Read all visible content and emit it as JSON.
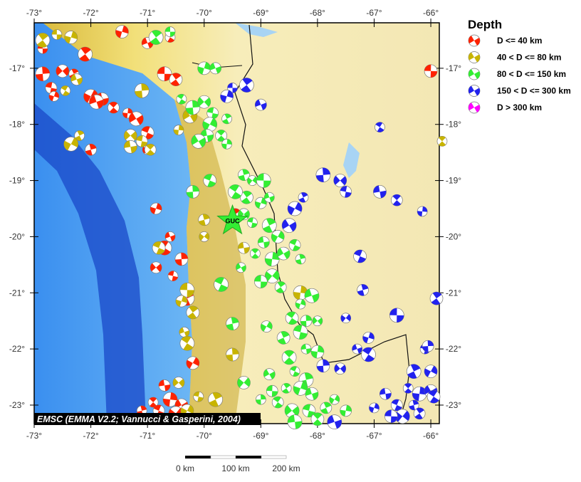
{
  "map": {
    "lon_range": [
      -73.0,
      -65.85
    ],
    "lat_range": [
      -23.33,
      -16.19
    ],
    "lon_ticks": [
      -73,
      -72,
      -71,
      -70,
      -69,
      -68,
      -67,
      -66
    ],
    "lat_ticks": [
      -17,
      -18,
      -19,
      -20,
      -21,
      -22,
      -23
    ],
    "lon_tick_labels": [
      "-73°",
      "-72°",
      "-71°",
      "-70°",
      "-69°",
      "-68°",
      "-67°",
      "-66°"
    ],
    "lat_tick_labels": [
      "-17°",
      "-18°",
      "-19°",
      "-20°",
      "-21°",
      "-22°",
      "-23°"
    ],
    "credit": "EMSC (EMMA V2.2; Vannucci & Gasperini, 2004)",
    "station": {
      "name": "GUC",
      "lon": -69.5,
      "lat": -19.72,
      "color": "#33ee33"
    },
    "scale_bar": {
      "labels": [
        "0 km",
        "100 km",
        "200 km"
      ]
    }
  },
  "legend": {
    "title": "Depth",
    "items": [
      {
        "label": "D <= 40 km",
        "color": "#ff2200"
      },
      {
        "label": "40 < D <= 80 km",
        "color": "#c8b400"
      },
      {
        "label": "80 < D <= 150 km",
        "color": "#33ee33"
      },
      {
        "label": "150 < D <= 300 km",
        "color": "#2222ee"
      },
      {
        "label": "D > 300 km",
        "color": "#ff00ff"
      }
    ]
  },
  "events": {
    "red": [
      [
        -72.85,
        -16.65
      ],
      [
        -72.1,
        -16.75
      ],
      [
        -71.45,
        -16.35
      ],
      [
        -71.0,
        -16.55
      ],
      [
        -70.6,
        -16.45
      ],
      [
        -72.85,
        -17.1
      ],
      [
        -72.5,
        -17.05
      ],
      [
        -72.7,
        -17.35
      ],
      [
        -72.3,
        -17.1
      ],
      [
        -72.0,
        -17.5
      ],
      [
        -71.8,
        -17.55
      ],
      [
        -71.6,
        -17.7
      ],
      [
        -71.35,
        -17.8
      ],
      [
        -71.2,
        -17.9
      ],
      [
        -71.0,
        -18.15
      ],
      [
        -72.0,
        -18.45
      ],
      [
        -71.0,
        -18.45
      ],
      [
        -70.7,
        -17.1
      ],
      [
        -70.5,
        -17.2
      ],
      [
        -70.85,
        -19.5
      ],
      [
        -70.6,
        -20.0
      ],
      [
        -70.7,
        -20.2
      ],
      [
        -70.4,
        -20.4
      ],
      [
        -70.85,
        -20.55
      ],
      [
        -70.55,
        -20.7
      ],
      [
        -70.3,
        -21.1
      ],
      [
        -70.2,
        -22.25
      ],
      [
        -70.7,
        -22.65
      ],
      [
        -70.9,
        -22.95
      ],
      [
        -70.6,
        -22.9
      ],
      [
        -70.4,
        -23.0
      ],
      [
        -70.8,
        -23.1
      ],
      [
        -71.1,
        -23.1
      ],
      [
        -70.5,
        -23.15
      ],
      [
        -66.0,
        -17.05
      ],
      [
        -69.45,
        -19.6
      ],
      [
        -72.65,
        -17.5
      ],
      [
        -71.9,
        -17.6
      ]
    ],
    "yellow": [
      [
        -72.6,
        -16.4
      ],
      [
        -72.85,
        -16.5
      ],
      [
        -72.35,
        -16.45
      ],
      [
        -72.25,
        -17.2
      ],
      [
        -72.45,
        -17.4
      ],
      [
        -71.1,
        -17.4
      ],
      [
        -71.3,
        -18.2
      ],
      [
        -71.1,
        -18.3
      ],
      [
        -72.2,
        -18.2
      ],
      [
        -72.35,
        -18.35
      ],
      [
        -71.3,
        -18.4
      ],
      [
        -70.95,
        -18.45
      ],
      [
        -70.45,
        -18.1
      ],
      [
        -70.25,
        -17.85
      ],
      [
        -70.8,
        -20.2
      ],
      [
        -70.0,
        -19.7
      ],
      [
        -70.0,
        -20.0
      ],
      [
        -70.3,
        -20.95
      ],
      [
        -70.2,
        -21.35
      ],
      [
        -70.4,
        -21.15
      ],
      [
        -70.35,
        -21.7
      ],
      [
        -70.3,
        -21.9
      ],
      [
        -69.5,
        -22.1
      ],
      [
        -70.45,
        -22.6
      ],
      [
        -70.1,
        -22.85
      ],
      [
        -69.8,
        -22.9
      ],
      [
        -70.3,
        -23.1
      ],
      [
        -69.3,
        -20.2
      ],
      [
        -65.8,
        -18.3
      ],
      [
        -68.3,
        -21.0
      ]
    ],
    "green": [
      [
        -70.6,
        -16.35
      ],
      [
        -70.85,
        -16.45
      ],
      [
        -70.0,
        -17.0
      ],
      [
        -69.8,
        -17.0
      ],
      [
        -70.4,
        -17.55
      ],
      [
        -70.2,
        -17.7
      ],
      [
        -70.0,
        -17.6
      ],
      [
        -69.85,
        -17.8
      ],
      [
        -69.6,
        -17.9
      ],
      [
        -69.9,
        -18.0
      ],
      [
        -69.95,
        -18.2
      ],
      [
        -69.7,
        -18.2
      ],
      [
        -69.6,
        -18.35
      ],
      [
        -70.1,
        -18.3
      ],
      [
        -69.9,
        -19.0
      ],
      [
        -69.3,
        -18.9
      ],
      [
        -69.15,
        -19.0
      ],
      [
        -68.95,
        -19.0
      ],
      [
        -69.25,
        -19.3
      ],
      [
        -69.0,
        -19.4
      ],
      [
        -68.85,
        -19.3
      ],
      [
        -69.45,
        -19.2
      ],
      [
        -70.2,
        -19.2
      ],
      [
        -69.3,
        -19.6
      ],
      [
        -69.15,
        -19.75
      ],
      [
        -68.85,
        -19.8
      ],
      [
        -68.7,
        -20.0
      ],
      [
        -68.95,
        -20.1
      ],
      [
        -69.1,
        -20.3
      ],
      [
        -68.8,
        -20.4
      ],
      [
        -68.6,
        -20.3
      ],
      [
        -68.4,
        -20.15
      ],
      [
        -68.3,
        -20.4
      ],
      [
        -68.8,
        -20.7
      ],
      [
        -69.0,
        -20.8
      ],
      [
        -68.65,
        -20.9
      ],
      [
        -68.3,
        -21.2
      ],
      [
        -68.1,
        -21.05
      ],
      [
        -68.45,
        -21.45
      ],
      [
        -68.2,
        -21.5
      ],
      [
        -68.0,
        -21.5
      ],
      [
        -68.3,
        -21.7
      ],
      [
        -68.6,
        -21.8
      ],
      [
        -68.9,
        -21.6
      ],
      [
        -68.2,
        -22.0
      ],
      [
        -68.5,
        -22.15
      ],
      [
        -68.0,
        -22.05
      ],
      [
        -68.85,
        -22.45
      ],
      [
        -68.4,
        -22.4
      ],
      [
        -68.2,
        -22.55
      ],
      [
        -69.3,
        -22.6
      ],
      [
        -68.8,
        -22.75
      ],
      [
        -68.55,
        -22.7
      ],
      [
        -68.3,
        -22.7
      ],
      [
        -68.1,
        -22.8
      ],
      [
        -68.7,
        -22.95
      ],
      [
        -69.0,
        -22.9
      ],
      [
        -68.45,
        -23.1
      ],
      [
        -68.15,
        -23.1
      ],
      [
        -67.85,
        -23.05
      ],
      [
        -67.7,
        -22.9
      ],
      [
        -68.4,
        -23.3
      ],
      [
        -68.0,
        -23.25
      ],
      [
        -67.5,
        -23.1
      ],
      [
        -69.35,
        -20.55
      ],
      [
        -69.7,
        -20.85
      ],
      [
        -69.5,
        -21.55
      ]
    ],
    "blue": [
      [
        -69.5,
        -17.35
      ],
      [
        -69.25,
        -17.3
      ],
      [
        -69.6,
        -17.5
      ],
      [
        -69.0,
        -17.65
      ],
      [
        -66.9,
        -18.05
      ],
      [
        -67.9,
        -18.9
      ],
      [
        -67.6,
        -19.0
      ],
      [
        -67.5,
        -19.2
      ],
      [
        -68.25,
        -19.3
      ],
      [
        -68.4,
        -19.5
      ],
      [
        -66.9,
        -19.2
      ],
      [
        -66.6,
        -19.35
      ],
      [
        -66.15,
        -19.55
      ],
      [
        -68.5,
        -19.8
      ],
      [
        -67.25,
        -20.35
      ],
      [
        -67.2,
        -20.95
      ],
      [
        -67.5,
        -21.45
      ],
      [
        -66.6,
        -21.4
      ],
      [
        -65.9,
        -21.1
      ],
      [
        -67.1,
        -21.8
      ],
      [
        -67.3,
        -22.0
      ],
      [
        -67.1,
        -22.1
      ],
      [
        -67.9,
        -22.3
      ],
      [
        -67.6,
        -22.35
      ],
      [
        -66.1,
        -22.0
      ],
      [
        -66.3,
        -22.4
      ],
      [
        -66.0,
        -22.4
      ],
      [
        -66.8,
        -22.8
      ],
      [
        -66.4,
        -22.7
      ],
      [
        -66.2,
        -22.8
      ],
      [
        -66.0,
        -22.75
      ],
      [
        -66.6,
        -23.0
      ],
      [
        -66.3,
        -23.0
      ],
      [
        -66.5,
        -23.2
      ],
      [
        -66.7,
        -23.2
      ],
      [
        -66.2,
        -23.15
      ],
      [
        -67.0,
        -23.05
      ],
      [
        -67.7,
        -23.3
      ],
      [
        -65.95,
        -22.85
      ],
      [
        -66.05,
        -21.95
      ]
    ]
  }
}
